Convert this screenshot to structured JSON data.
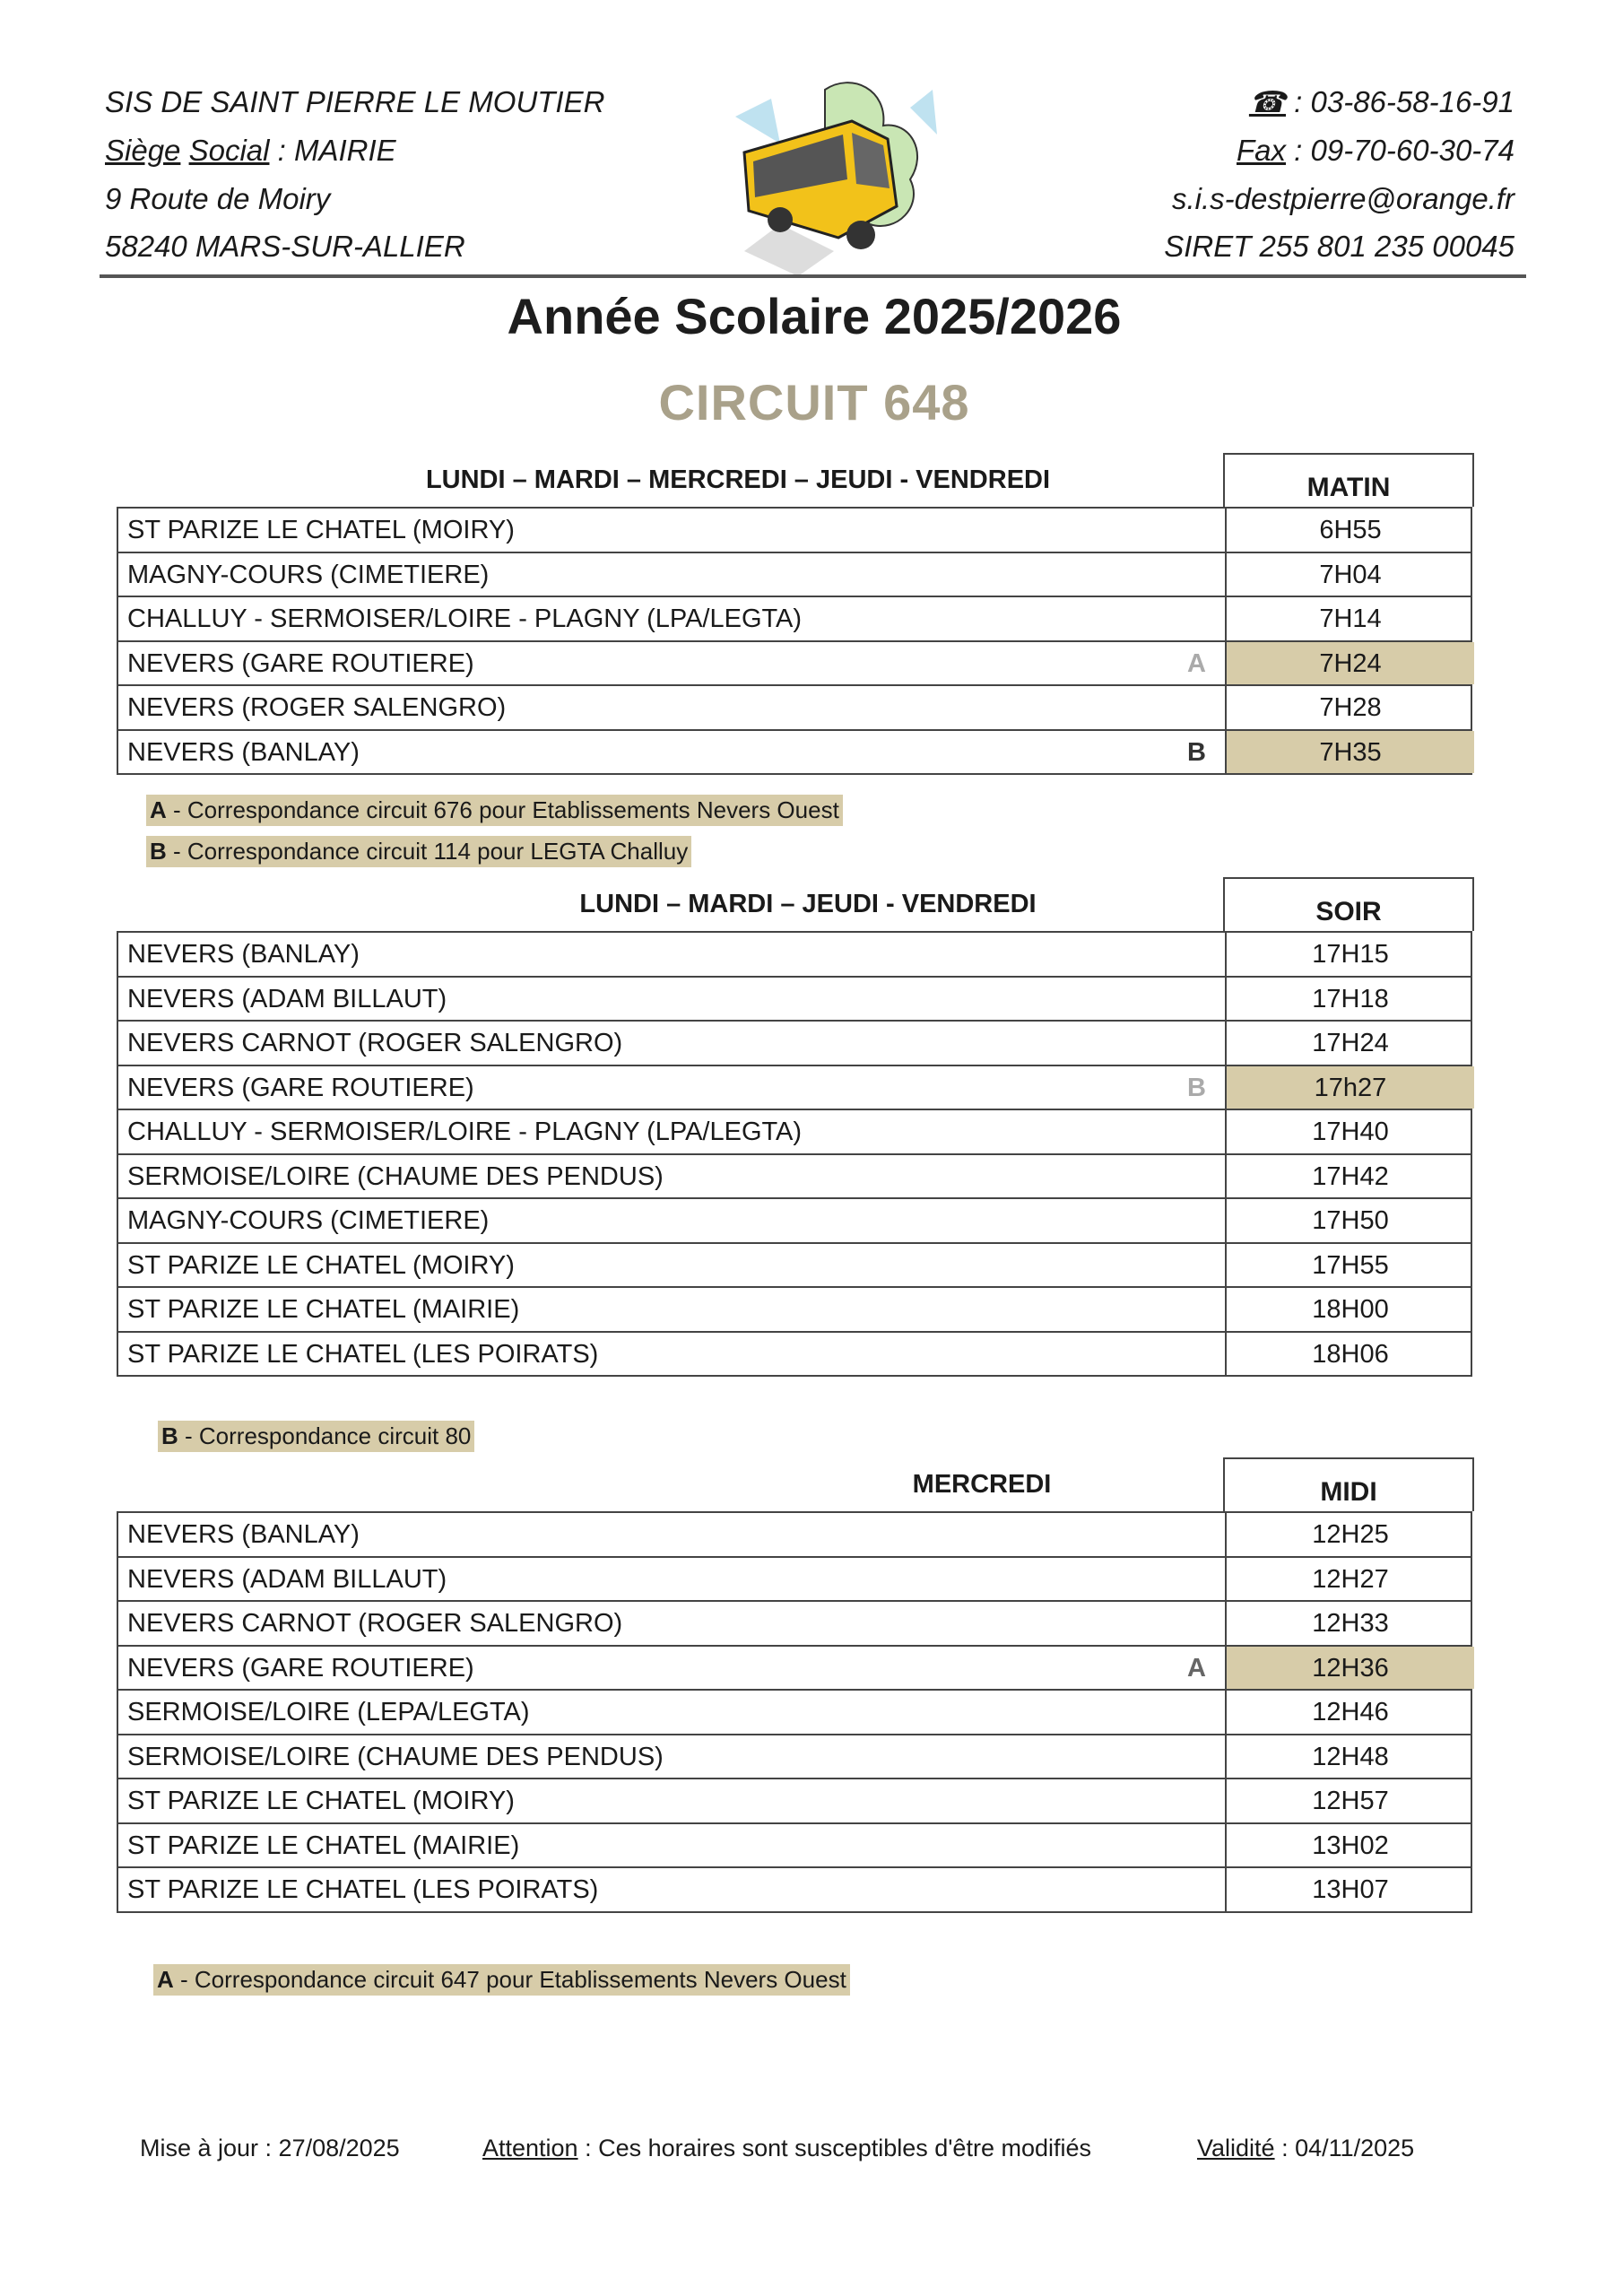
{
  "org": {
    "name": "SIS DE SAINT PIERRE LE MOUTIER",
    "siege_label_1": "Siège",
    "siege_label_2": "Social",
    "siege_value": " : MAIRIE",
    "address1": "9 Route de Moiry",
    "address2": "58240 MARS-SUR-ALLIER",
    "phone_icon": "telephone-icon",
    "phone": " : 03-86-58-16-91",
    "fax_label": "Fax",
    "fax": " : 09-70-60-30-74",
    "email": "s.i.s-destpierre@orange.fr",
    "siret": "SIRET 255 801 235 00045"
  },
  "title": "Année Scolaire 2025/2026",
  "circuit": "CIRCUIT 648",
  "colors": {
    "highlight": "#d7cca9",
    "circuit_title": "#a9a18a"
  },
  "tables": [
    {
      "days": "LUNDI – MARDI – MERCREDI – JEUDI - VENDREDI",
      "period": "MATIN",
      "rows": [
        {
          "stop": "ST PARIZE LE CHATEL (MOIRY)",
          "mark": "",
          "time": "6H55",
          "hl": false
        },
        {
          "stop": "MAGNY-COURS (CIMETIERE)",
          "mark": "",
          "time": "7H04",
          "hl": false
        },
        {
          "stop": "CHALLUY - SERMOISER/LOIRE - PLAGNY (LPA/LEGTA)",
          "mark": "",
          "time": "7H14",
          "hl": false
        },
        {
          "stop": "NEVERS (GARE ROUTIERE)",
          "mark": "A",
          "time": "7H24",
          "hl": true
        },
        {
          "stop": "NEVERS (ROGER SALENGRO)",
          "mark": "",
          "time": "7H28",
          "hl": false
        },
        {
          "stop": "NEVERS (BANLAY)",
          "mark": "B",
          "time": "7H35",
          "hl": true
        }
      ],
      "notes": [
        {
          "letter": "A",
          "text": " - Correspondance circuit 676 pour Etablissements Nevers Ouest"
        },
        {
          "letter": "B",
          "text": " -  Correspondance circuit 114 pour LEGTA Challuy"
        }
      ]
    },
    {
      "days": "LUNDI – MARDI – JEUDI - VENDREDI",
      "period": "SOIR",
      "rows": [
        {
          "stop": "NEVERS (BANLAY)",
          "mark": "",
          "time": "17H15",
          "hl": false
        },
        {
          "stop": "NEVERS (ADAM BILLAUT)",
          "mark": "",
          "time": "17H18",
          "hl": false
        },
        {
          "stop": "NEVERS CARNOT (ROGER SALENGRO)",
          "mark": "",
          "time": "17H24",
          "hl": false
        },
        {
          "stop": "NEVERS (GARE ROUTIERE)",
          "mark": "B",
          "time": "17h27",
          "hl": true
        },
        {
          "stop": "CHALLUY - SERMOISER/LOIRE - PLAGNY (LPA/LEGTA)",
          "mark": "",
          "time": "17H40",
          "hl": false
        },
        {
          "stop": "SERMOISE/LOIRE (CHAUME DES PENDUS)",
          "mark": "",
          "time": "17H42",
          "hl": false
        },
        {
          "stop": "MAGNY-COURS (CIMETIERE)",
          "mark": "",
          "time": "17H50",
          "hl": false
        },
        {
          "stop": "ST PARIZE LE CHATEL (MOIRY)",
          "mark": "",
          "time": "17H55",
          "hl": false
        },
        {
          "stop": "ST PARIZE LE CHATEL (MAIRIE)",
          "mark": "",
          "time": "18H00",
          "hl": false
        },
        {
          "stop": "ST PARIZE LE CHATEL (LES POIRATS)",
          "mark": "",
          "time": "18H06",
          "hl": false
        }
      ],
      "notes": [
        {
          "letter": "B",
          "text": " -  Correspondance circuit 80"
        }
      ]
    },
    {
      "days": "MERCREDI",
      "period": "MIDI",
      "rows": [
        {
          "stop": "NEVERS (BANLAY)",
          "mark": "",
          "time": "12H25",
          "hl": false
        },
        {
          "stop": "NEVERS (ADAM BILLAUT)",
          "mark": "",
          "time": "12H27",
          "hl": false
        },
        {
          "stop": "NEVERS CARNOT (ROGER SALENGRO)",
          "mark": "",
          "time": "12H33",
          "hl": false
        },
        {
          "stop": "NEVERS (GARE ROUTIERE)",
          "mark": "A",
          "time": "12H36",
          "hl": true
        },
        {
          "stop": "SERMOISE/LOIRE (LEPA/LEGTA)",
          "mark": "",
          "time": "12H46",
          "hl": false
        },
        {
          "stop": "SERMOISE/LOIRE (CHAUME DES PENDUS)",
          "mark": "",
          "time": "12H48",
          "hl": false
        },
        {
          "stop": "ST PARIZE LE CHATEL (MOIRY)",
          "mark": "",
          "time": "12H57",
          "hl": false
        },
        {
          "stop": "ST PARIZE LE CHATEL (MAIRIE)",
          "mark": "",
          "time": "13H02",
          "hl": false
        },
        {
          "stop": "ST PARIZE LE CHATEL (LES POIRATS)",
          "mark": "",
          "time": "13H07",
          "hl": false
        }
      ],
      "notes": [
        {
          "letter": "A",
          "text": " - Correspondance circuit 647 pour Etablissements Nevers Ouest"
        }
      ]
    }
  ],
  "footer": {
    "updated": "Mise à jour : 27/08/2025",
    "attention_label": "Attention",
    "attention_text": " : Ces horaires sont susceptibles d'être modifiés",
    "validity_label": "Validité",
    "validity_text": " : 04/11/2025"
  }
}
